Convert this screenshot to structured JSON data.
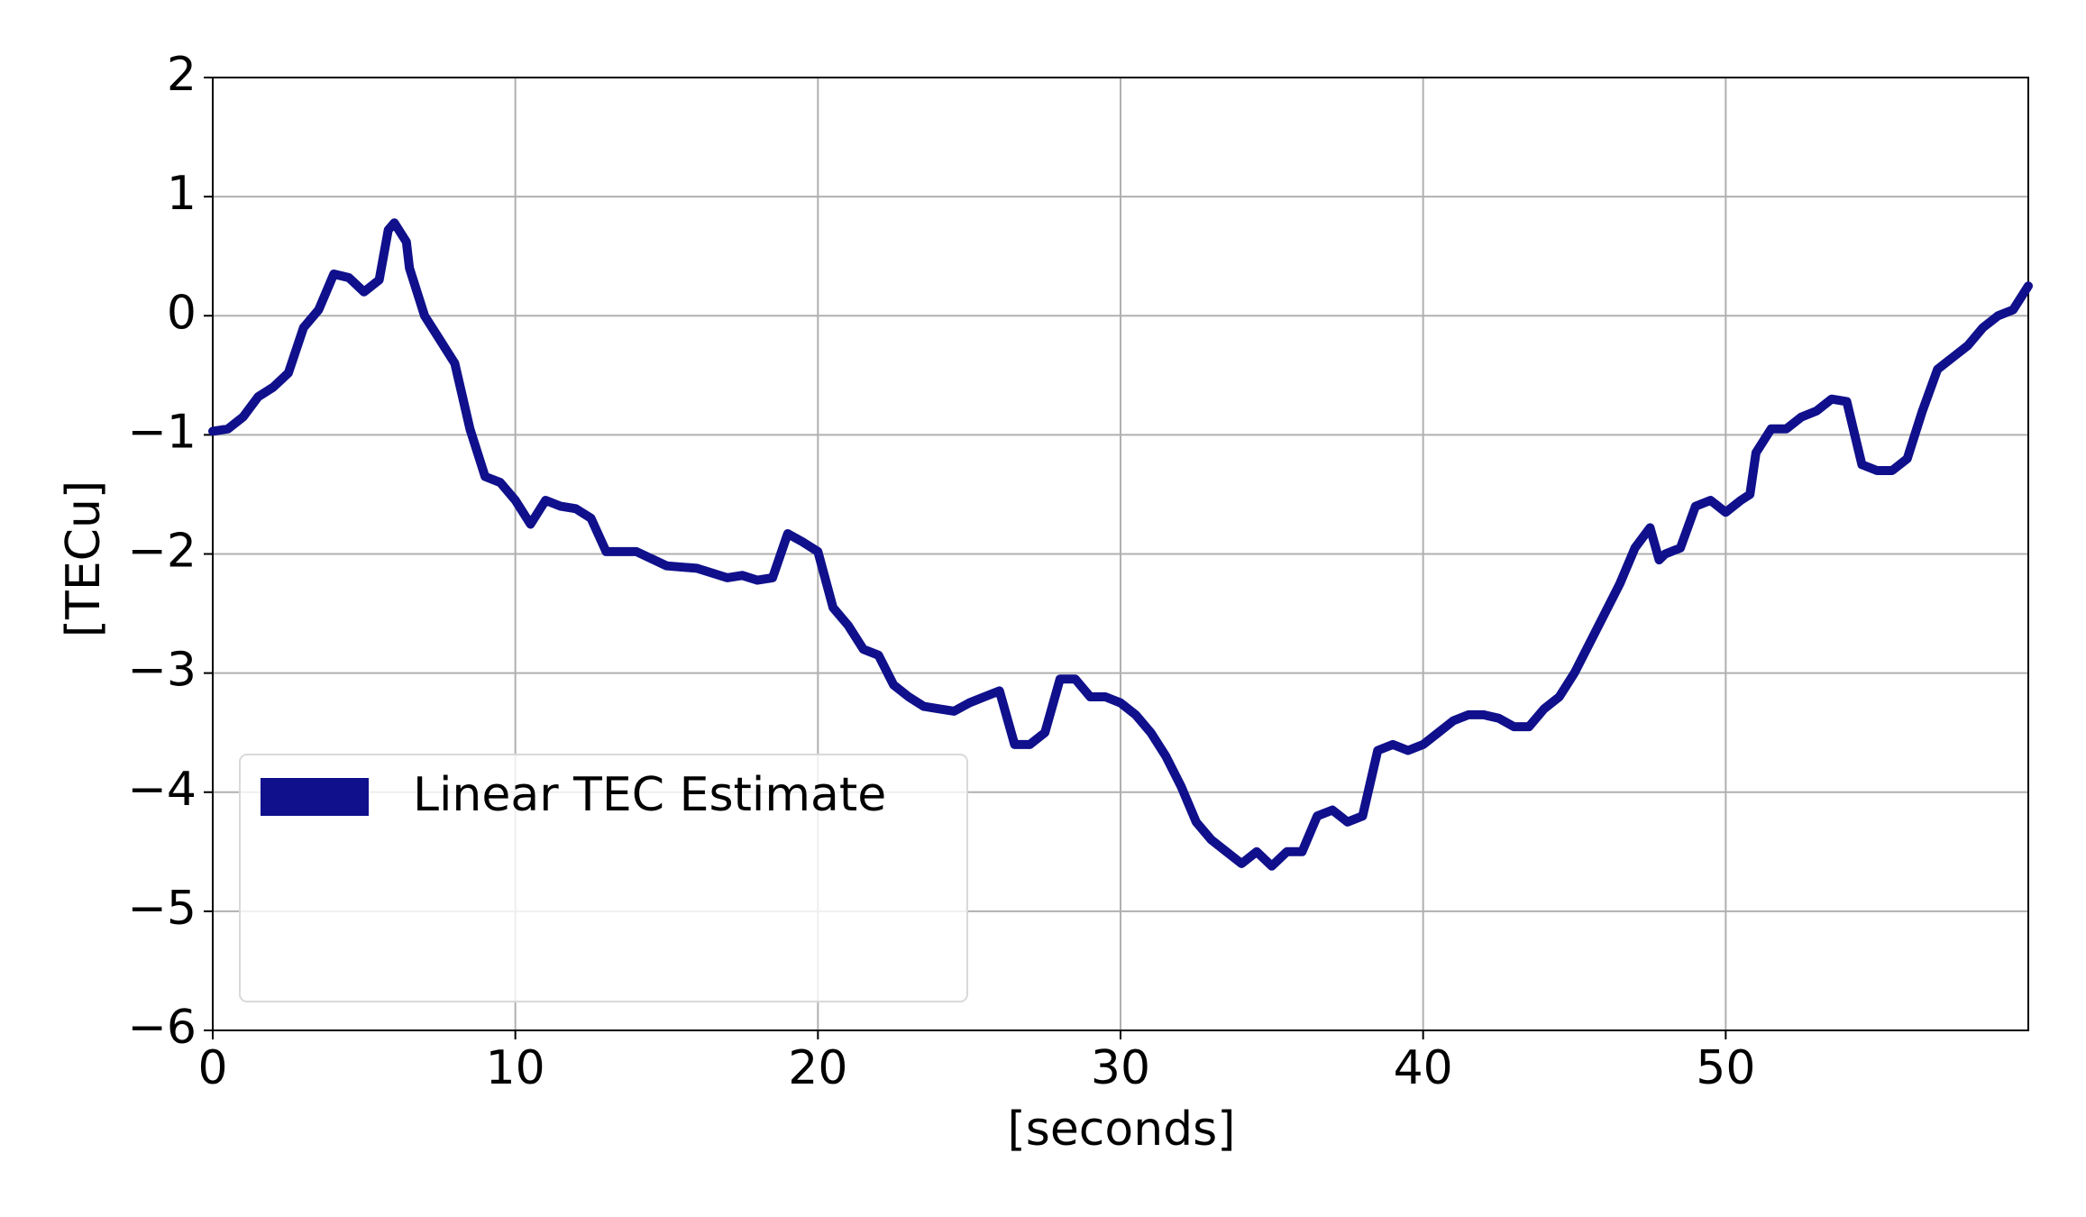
{
  "chart_data": {
    "type": "line",
    "xlabel": "[seconds]",
    "ylabel": "[TECu]",
    "x": [
      0,
      0.5,
      1,
      1.5,
      2,
      2.5,
      3,
      3.5,
      4,
      4.5,
      5,
      5.5,
      5.8,
      6,
      6.4,
      6.5,
      7,
      7.5,
      8,
      8.5,
      9,
      9.5,
      10,
      10.5,
      11,
      11.5,
      12,
      12.5,
      13,
      14,
      15,
      16,
      17,
      17.5,
      18,
      18.5,
      19,
      19.5,
      20,
      20.5,
      21,
      21.5,
      22,
      22.5,
      23,
      23.5,
      24,
      24.5,
      25,
      25.5,
      26,
      26.5,
      27,
      27.5,
      28,
      28.5,
      29,
      29.5,
      30,
      30.5,
      31,
      31.5,
      32,
      32.5,
      33,
      33.5,
      34,
      34.5,
      35,
      35.5,
      36,
      36.5,
      37,
      37.5,
      38,
      38.5,
      39,
      39.5,
      40,
      40.5,
      41,
      41.5,
      42,
      42.5,
      43,
      43.5,
      44,
      44.5,
      45,
      45.5,
      46,
      46.5,
      47,
      47.5,
      47.8,
      48,
      48.5,
      49,
      49.5,
      50,
      50.5,
      50.8,
      51,
      51.5,
      52,
      52.5,
      53,
      53.5,
      54,
      54.5,
      55,
      55.5,
      56,
      56.5,
      57,
      57.5,
      58,
      58.5,
      59,
      59.5,
      60
    ],
    "series": [
      {
        "name": "Linear TEC Estimate",
        "color": "#10108c",
        "values": [
          -0.97,
          -0.95,
          -0.85,
          -0.68,
          -0.6,
          -0.48,
          -0.1,
          0.05,
          0.35,
          0.32,
          0.2,
          0.3,
          0.72,
          0.78,
          0.62,
          0.4,
          0.0,
          -0.2,
          -0.4,
          -0.95,
          -1.35,
          -1.4,
          -1.55,
          -1.75,
          -1.55,
          -1.6,
          -1.62,
          -1.7,
          -1.98,
          -1.98,
          -2.1,
          -2.12,
          -2.2,
          -2.18,
          -2.22,
          -2.2,
          -1.83,
          -1.9,
          -1.98,
          -2.45,
          -2.6,
          -2.8,
          -2.85,
          -3.1,
          -3.2,
          -3.28,
          -3.3,
          -3.32,
          -3.25,
          -3.2,
          -3.15,
          -3.6,
          -3.6,
          -3.5,
          -3.05,
          -3.05,
          -3.2,
          -3.2,
          -3.25,
          -3.35,
          -3.5,
          -3.7,
          -3.95,
          -4.25,
          -4.4,
          -4.5,
          -4.6,
          -4.5,
          -4.62,
          -4.5,
          -4.5,
          -4.2,
          -4.15,
          -4.25,
          -4.2,
          -3.65,
          -3.6,
          -3.65,
          -3.6,
          -3.5,
          -3.4,
          -3.35,
          -3.35,
          -3.38,
          -3.45,
          -3.45,
          -3.3,
          -3.2,
          -3.0,
          -2.75,
          -2.5,
          -2.25,
          -1.95,
          -1.78,
          -2.05,
          -2.0,
          -1.95,
          -1.6,
          -1.55,
          -1.65,
          -1.55,
          -1.5,
          -1.15,
          -0.95,
          -0.95,
          -0.85,
          -0.8,
          -0.7,
          -0.72,
          -1.25,
          -1.3,
          -1.3,
          -1.2,
          -0.8,
          -0.45,
          -0.35,
          -0.25,
          -0.1,
          0.0,
          0.05,
          0.25
        ]
      }
    ],
    "xlim": [
      0,
      60
    ],
    "ylim": [
      -6,
      2
    ],
    "xticks": [
      0,
      10,
      20,
      30,
      40,
      50
    ],
    "yticks": [
      {
        "value": -6,
        "label": "−6"
      },
      {
        "value": -5,
        "label": "−5"
      },
      {
        "value": -4,
        "label": "−4"
      },
      {
        "value": -3,
        "label": "−3"
      },
      {
        "value": -2,
        "label": "−2"
      },
      {
        "value": -1,
        "label": "−1"
      },
      0,
      1,
      2
    ],
    "grid": true,
    "legend": "lower left"
  }
}
